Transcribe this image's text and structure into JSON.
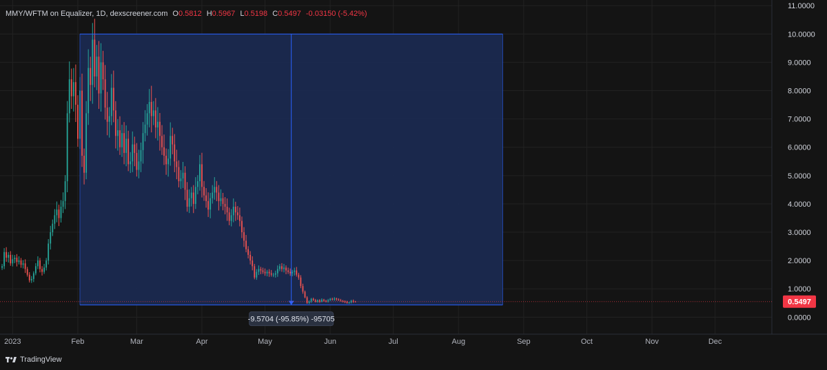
{
  "header": {
    "symbol_line": "MMY/WFTM on Equalizer, 1D, dexscreener.com",
    "o_label": "O",
    "o_value": "0.5812",
    "h_label": "H",
    "h_value": "0.5967",
    "l_label": "L",
    "l_value": "0.5198",
    "c_label": "C",
    "c_value": "0.5497",
    "change": "-0.03150 (-5.42%)"
  },
  "footer": {
    "brand": "TradingView"
  },
  "measure": {
    "label": "-9.5704 (-95.85%) -95705",
    "start_date": "2023-02-02",
    "end_date": "2023-08-22",
    "top": 10.0,
    "bottom": 0.43
  },
  "last_price": {
    "label": "0.5497",
    "value": 0.5497
  },
  "colors": {
    "background": "#141414",
    "grid": "#222222",
    "up": "#26a69a",
    "down": "#ef5350",
    "measure_fill": "#1b2a52",
    "measure_border": "#2962ff",
    "last_price_bg": "#f23645"
  },
  "chart_data": {
    "type": "candlestick",
    "x_axis": {
      "start_date": "2022-12-26",
      "end_date": "2023-12-28",
      "ticks": [
        {
          "date": "2023-01-01",
          "label": "2023"
        },
        {
          "date": "2023-02-01",
          "label": "Feb"
        },
        {
          "date": "2023-03-01",
          "label": "Mar"
        },
        {
          "date": "2023-04-01",
          "label": "Apr"
        },
        {
          "date": "2023-05-01",
          "label": "May"
        },
        {
          "date": "2023-06-01",
          "label": "Jun"
        },
        {
          "date": "2023-07-01",
          "label": "Jul"
        },
        {
          "date": "2023-08-01",
          "label": "Aug"
        },
        {
          "date": "2023-09-01",
          "label": "Sep"
        },
        {
          "date": "2023-10-01",
          "label": "Oct"
        },
        {
          "date": "2023-11-01",
          "label": "Nov"
        },
        {
          "date": "2023-12-01",
          "label": "Dec"
        }
      ]
    },
    "y_axis": {
      "min": -0.6,
      "max": 11.2,
      "ticks": [
        {
          "value": 0,
          "label": "0.0000"
        },
        {
          "value": 1,
          "label": "1.0000"
        },
        {
          "value": 2,
          "label": "2.0000"
        },
        {
          "value": 3,
          "label": "3.0000"
        },
        {
          "value": 4,
          "label": "4.0000"
        },
        {
          "value": 5,
          "label": "5.0000"
        },
        {
          "value": 6,
          "label": "6.0000"
        },
        {
          "value": 7,
          "label": "7.0000"
        },
        {
          "value": 8,
          "label": "8.0000"
        },
        {
          "value": 9,
          "label": "9.0000"
        },
        {
          "value": 10,
          "label": "10.0000"
        },
        {
          "value": 11,
          "label": "11.0000"
        }
      ]
    },
    "grid": true,
    "series": [
      {
        "first_date": "2022-12-27",
        "close": [
          1.8,
          2.3,
          2.1,
          2.2,
          1.9,
          2.05,
          2.1,
          1.95,
          2.0,
          1.85,
          1.9,
          1.7,
          1.5,
          1.3,
          1.35,
          1.55,
          1.8,
          2.0,
          1.7,
          1.6,
          1.75,
          2.0,
          2.6,
          3.0,
          3.3,
          3.6,
          3.8,
          3.5,
          3.9,
          4.1,
          4.8,
          7.2,
          8.4,
          7.8,
          8.3,
          7.5,
          6.3,
          8.0,
          5.7,
          5.1,
          7.2,
          8.8,
          8.2,
          9.8,
          8.5,
          9.2,
          7.9,
          9.0,
          8.4,
          7.4,
          6.9,
          7.1,
          8.1,
          7.3,
          6.4,
          6.6,
          6.0,
          6.5,
          5.8,
          6.3,
          5.4,
          5.5,
          6.1,
          5.8,
          5.2,
          5.5,
          5.9,
          6.5,
          6.8,
          7.2,
          7.6,
          7.1,
          7.3,
          6.7,
          6.9,
          6.4,
          6.0,
          5.7,
          5.4,
          5.6,
          6.4,
          6.1,
          5.5,
          5.3,
          4.8,
          4.9,
          5.1,
          4.5,
          3.9,
          4.2,
          4.4,
          4.0,
          4.6,
          4.8,
          5.4,
          4.6,
          4.3,
          4.1,
          3.8,
          4.2,
          4.4,
          4.6,
          4.4,
          4.1,
          4.2,
          4.0,
          3.9,
          3.7,
          3.4,
          3.6,
          3.9,
          3.7,
          3.6,
          3.4,
          3.0,
          2.7,
          2.4,
          2.2,
          2.0,
          1.8,
          1.4,
          1.6,
          1.7,
          1.65,
          1.6,
          1.55,
          1.6,
          1.55,
          1.5,
          1.5,
          1.55,
          1.7,
          1.8,
          1.7,
          1.75,
          1.65,
          1.6,
          1.55,
          1.6,
          1.65,
          1.5,
          1.4,
          1.1,
          0.9,
          0.7,
          0.5,
          0.55,
          0.65,
          0.6,
          0.55,
          0.6,
          0.55,
          0.62,
          0.58,
          0.56,
          0.6,
          0.65,
          0.62,
          0.66,
          0.63,
          0.6,
          0.58,
          0.56,
          0.54,
          0.5,
          0.52,
          0.58,
          0.55,
          0.5497
        ]
      }
    ]
  }
}
